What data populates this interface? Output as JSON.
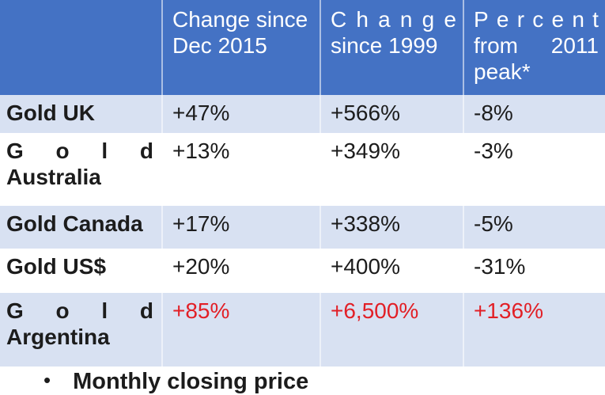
{
  "colors": {
    "header_bg": "#4472C4",
    "band_bg": "#D8E1F2",
    "header_text": "#FFFFFF",
    "body_text": "#1C1C1C",
    "highlight_text": "#E21F26"
  },
  "table": {
    "header": {
      "col0_lines": [],
      "col1_lines": [
        {
          "text": "Change since",
          "mode": "normal"
        },
        {
          "text": "Dec 2015",
          "mode": "normal"
        }
      ],
      "col2_lines": [
        {
          "text": "Change",
          "mode": "chars"
        },
        {
          "text": "since 1999",
          "mode": "normal"
        }
      ],
      "col3_lines": [
        {
          "text": "Percent",
          "mode": "chars"
        },
        {
          "text": "from 2011",
          "mode": "words"
        },
        {
          "text": "peak*",
          "mode": "normal"
        }
      ]
    },
    "rows": [
      {
        "name": "Gold UK",
        "name_lines": [
          {
            "text": "Gold UK",
            "mode": "normal"
          }
        ],
        "values": [
          "+47%",
          "+566%",
          "-8%"
        ],
        "highlight": false
      },
      {
        "name": "Gold Australia",
        "name_lines": [
          {
            "text": "Gold",
            "mode": "chars"
          },
          {
            "text": "Australia",
            "mode": "normal"
          }
        ],
        "values": [
          "+13%",
          "+349%",
          "-3%"
        ],
        "highlight": false
      },
      {
        "name": "Gold Canada",
        "name_lines": [
          {
            "text": "Gold Canada",
            "mode": "normal"
          }
        ],
        "values": [
          "+17%",
          "+338%",
          "-5%"
        ],
        "highlight": false
      },
      {
        "name": "Gold US$",
        "name_lines": [
          {
            "text": "Gold US$",
            "mode": "normal"
          }
        ],
        "values": [
          "+20%",
          "+400%",
          "-31%"
        ],
        "highlight": false
      },
      {
        "name": "Gold Argentina",
        "name_lines": [
          {
            "text": "Gold",
            "mode": "chars"
          },
          {
            "text": "Argentina",
            "mode": "normal"
          }
        ],
        "values": [
          "+85%",
          "+6,500%",
          "+136%"
        ],
        "highlight": true
      }
    ]
  },
  "footnote": {
    "bullet": "•",
    "text": "Monthly closing price"
  }
}
